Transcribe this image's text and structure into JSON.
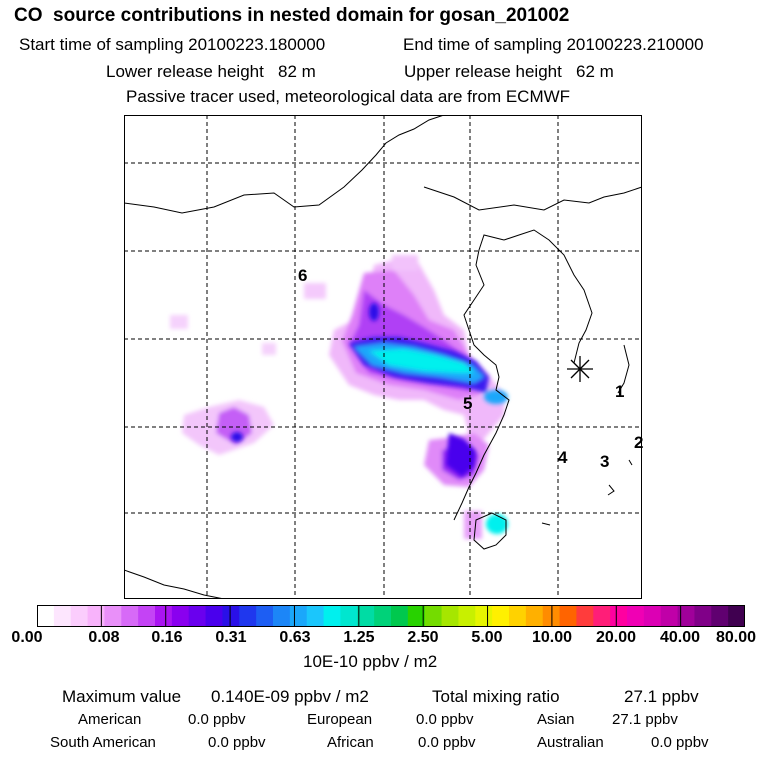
{
  "title": "CO  source contributions in nested domain for gosan_201002",
  "sampling": {
    "start": "Start time of sampling 20100223.180000",
    "end": "End time of sampling 20100223.210000"
  },
  "release": {
    "lower": "Lower release height   82 m",
    "upper": "Upper release height   62 m"
  },
  "note": "Passive tracer used, meteorological data are from ECMWF",
  "map": {
    "region_labels": [
      "1",
      "2",
      "3",
      "4",
      "5",
      "6"
    ],
    "station_marker": "station-star-icon"
  },
  "colorbar": {
    "tick_labels": [
      "0.00",
      "0.08",
      "0.16",
      "0.31",
      "0.63",
      "1.25",
      "2.50",
      "5.00",
      "10.00",
      "20.00",
      "40.00",
      "80.00"
    ],
    "units": "10E-10 ppbv / m2",
    "colors": [
      "#ffffff",
      "#fde6fe",
      "#fbcdfd",
      "#f8b3fb",
      "#e990f9",
      "#d76af7",
      "#c443f5",
      "#aa14f1",
      "#8a00ef",
      "#6a00ee",
      "#4a00ed",
      "#2a10e8",
      "#1f37ee",
      "#1d5ef3",
      "#1c86f7",
      "#1ba7fa",
      "#1bc6fc",
      "#00f0ee",
      "#00e6cf",
      "#00dca4",
      "#00d279",
      "#00c84e",
      "#28d200",
      "#74dc00",
      "#a6e600",
      "#c8f000",
      "#e6f500",
      "#fff000",
      "#ffd200",
      "#ffb000",
      "#ff8c00",
      "#ff6400",
      "#ff3c3c",
      "#ff1e78",
      "#ff00a0",
      "#f000b4",
      "#dc00b4",
      "#c000a8",
      "#a0009a",
      "#800088",
      "#600070",
      "#400050"
    ]
  },
  "stats": {
    "max_label": "Maximum value",
    "max_value": "0.140E-09 ppbv / m2",
    "total_label": "Total mixing ratio",
    "total_value": "27.1 ppbv",
    "sources": [
      {
        "name": "American",
        "value": "0.0 ppbv"
      },
      {
        "name": "European",
        "value": "0.0 ppbv"
      },
      {
        "name": "Asian",
        "value": "27.1 ppbv"
      },
      {
        "name": "South American",
        "value": "0.0 ppbv"
      },
      {
        "name": "African",
        "value": "0.0 ppbv"
      },
      {
        "name": "Australian",
        "value": "0.0 ppbv"
      }
    ]
  }
}
